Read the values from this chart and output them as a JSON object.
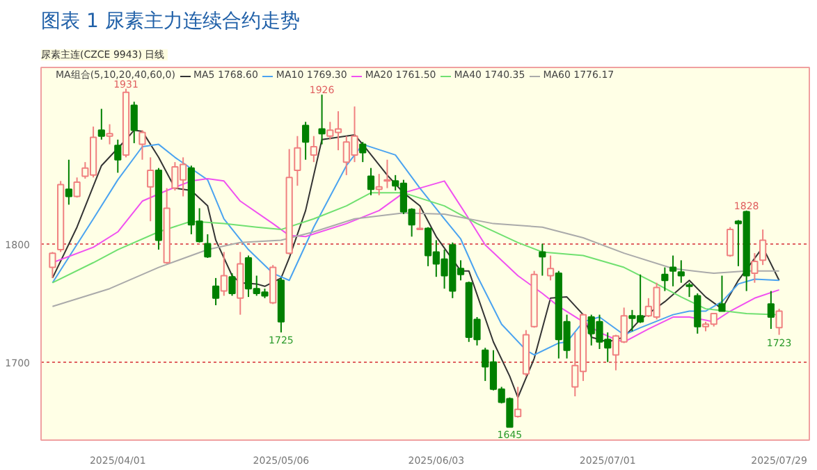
{
  "chart_data": {
    "type": "candlestick",
    "title": "图表 1 尿素主力连续合约走势",
    "subtitle": "尿素主连(CZCE 9943)  日线",
    "legend_title": "MA组合(5,10,20,40,60,0)",
    "categories": [
      null,
      null,
      null,
      null,
      null,
      null,
      null,
      null,
      "2025/04/01",
      null,
      null,
      null,
      null,
      null,
      null,
      null,
      null,
      null,
      null,
      null,
      null,
      null,
      null,
      null,
      null,
      null,
      null,
      null,
      "2025/05/06",
      null,
      null,
      null,
      null,
      null,
      null,
      null,
      null,
      null,
      null,
      null,
      null,
      null,
      null,
      null,
      null,
      null,
      null,
      "2025/06/03",
      null,
      null,
      null,
      null,
      null,
      null,
      null,
      null,
      null,
      null,
      null,
      null,
      null,
      null,
      null,
      null,
      null,
      null,
      null,
      null,
      "2025/07/01",
      null,
      null,
      null,
      null,
      null,
      null,
      null,
      null,
      null,
      null,
      null,
      null,
      null,
      null,
      null,
      null,
      null,
      null,
      null,
      null,
      "2025/07/29"
    ],
    "ohlc": [
      [
        1780,
        1793,
        1771,
        1792
      ],
      [
        1795,
        1853,
        1793,
        1850
      ],
      [
        1846,
        1871,
        1833,
        1840
      ],
      [
        1840,
        1856,
        1839,
        1852
      ],
      [
        1857,
        1869,
        1855,
        1864
      ],
      [
        1858,
        1899,
        1856,
        1890
      ],
      [
        1896,
        1914,
        1888,
        1891
      ],
      [
        1891,
        1901,
        1884,
        1893
      ],
      [
        1883,
        1888,
        1860,
        1871
      ],
      [
        1875,
        1931,
        1873,
        1928
      ],
      [
        1917,
        1920,
        1885,
        1896
      ],
      [
        1884,
        1896,
        1871,
        1894
      ],
      [
        1848,
        1873,
        1819,
        1862
      ],
      [
        1862,
        1864,
        1795,
        1803
      ],
      [
        1784,
        1847,
        1783,
        1830
      ],
      [
        1847,
        1869,
        1845,
        1865
      ],
      [
        1854,
        1873,
        1840,
        1867
      ],
      [
        1864,
        1866,
        1808,
        1816
      ],
      [
        1819,
        1830,
        1801,
        1802
      ],
      [
        1800,
        1808,
        1788,
        1789
      ],
      [
        1764,
        1771,
        1748,
        1754
      ],
      [
        1760,
        1793,
        1756,
        1773
      ],
      [
        1772,
        1775,
        1756,
        1758
      ],
      [
        1754,
        1793,
        1740,
        1783
      ],
      [
        1788,
        1790,
        1755,
        1762
      ],
      [
        1762,
        1773,
        1756,
        1758
      ],
      [
        1759,
        1762,
        1754,
        1756
      ],
      [
        1750,
        1782,
        1749,
        1780
      ],
      [
        1769,
        1771,
        1725,
        1734
      ],
      [
        1792,
        1880,
        1791,
        1856
      ],
      [
        1862,
        1891,
        1849,
        1881
      ],
      [
        1900,
        1903,
        1871,
        1886
      ],
      [
        1875,
        1891,
        1869,
        1882
      ],
      [
        1897,
        1926,
        1884,
        1893
      ],
      [
        1891,
        1903,
        1888,
        1896
      ],
      [
        1894,
        1912,
        1879,
        1897
      ],
      [
        1869,
        1891,
        1858,
        1886
      ],
      [
        1875,
        1916,
        1869,
        1891
      ],
      [
        1884,
        1886,
        1869,
        1877
      ],
      [
        1857,
        1864,
        1841,
        1846
      ],
      [
        1846,
        1859,
        1841,
        1848
      ],
      [
        1853,
        1871,
        1847,
        1854
      ],
      [
        1853,
        1858,
        1845,
        1849
      ],
      [
        1851,
        1854,
        1825,
        1827
      ],
      [
        1829,
        1830,
        1806,
        1816
      ],
      [
        1812,
        1830,
        1812,
        1813
      ],
      [
        1813,
        1814,
        1781,
        1790
      ],
      [
        1793,
        1803,
        1772,
        1783
      ],
      [
        1787,
        1795,
        1762,
        1773
      ],
      [
        1799,
        1801,
        1754,
        1760
      ],
      [
        1779,
        1786,
        1769,
        1774
      ],
      [
        1767,
        1768,
        1717,
        1721
      ],
      [
        1736,
        1738,
        1714,
        1719
      ],
      [
        1710,
        1712,
        1684,
        1696
      ],
      [
        1700,
        1710,
        1676,
        1677
      ],
      [
        1677,
        1679,
        1665,
        1666
      ],
      [
        1669,
        1670,
        1645,
        1645
      ],
      [
        1654,
        1679,
        1653,
        1660
      ],
      [
        1690,
        1727,
        1688,
        1723
      ],
      [
        1730,
        1777,
        1729,
        1774
      ],
      [
        1793,
        1800,
        1773,
        1789
      ],
      [
        1773,
        1790,
        1769,
        1779
      ],
      [
        1775,
        1777,
        1703,
        1719
      ],
      [
        1734,
        1740,
        1703,
        1710
      ],
      [
        1679,
        1725,
        1671,
        1697
      ],
      [
        1692,
        1741,
        1684,
        1740
      ],
      [
        1738,
        1740,
        1714,
        1724
      ],
      [
        1734,
        1740,
        1711,
        1717
      ],
      [
        1719,
        1725,
        1700,
        1712
      ],
      [
        1706,
        1723,
        1693,
        1722
      ],
      [
        1717,
        1746,
        1716,
        1739
      ],
      [
        1739,
        1744,
        1726,
        1737
      ],
      [
        1739,
        1774,
        1733,
        1734
      ],
      [
        1739,
        1754,
        1738,
        1747
      ],
      [
        1738,
        1767,
        1736,
        1763
      ],
      [
        1774,
        1780,
        1760,
        1769
      ],
      [
        1780,
        1790,
        1764,
        1777
      ],
      [
        1776,
        1786,
        1767,
        1773
      ],
      [
        1765,
        1767,
        1755,
        1764
      ],
      [
        1756,
        1758,
        1724,
        1730
      ],
      [
        1730,
        1734,
        1726,
        1732
      ],
      [
        1732,
        1741,
        1730,
        1741
      ],
      [
        1749,
        1773,
        1743,
        1743
      ],
      [
        1790,
        1814,
        1789,
        1812
      ],
      [
        1819,
        1820,
        1781,
        1817
      ],
      [
        1827,
        1828,
        1760,
        1773
      ],
      [
        1775,
        1792,
        1767,
        1785
      ],
      [
        1786,
        1812,
        1782,
        1803
      ],
      [
        1749,
        1760,
        1728,
        1738
      ],
      [
        1729,
        1745,
        1723,
        1743
      ]
    ],
    "colors": [
      "#f08080",
      "#f08080",
      "#008000",
      "#f08080",
      "#f08080",
      "#f08080",
      "#008000",
      "#f08080",
      "#008000",
      "#f08080",
      "#008000",
      "#f08080",
      "#f08080",
      "#008000",
      "#f08080",
      "#f08080",
      "#f08080",
      "#008000",
      "#008000",
      "#008000",
      "#008000",
      "#f08080",
      "#008000",
      "#f08080",
      "#008000",
      "#008000",
      "#008000",
      "#f08080",
      "#008000",
      "#f08080",
      "#f08080",
      "#008000",
      "#f08080",
      "#008000",
      "#f08080",
      "#f08080",
      "#f08080",
      "#f08080",
      "#008000",
      "#008000",
      "#f08080",
      "#f08080",
      "#008000",
      "#008000",
      "#008000",
      "#f08080",
      "#008000",
      "#008000",
      "#008000",
      "#008000",
      "#008000",
      "#008000",
      "#008000",
      "#008000",
      "#008000",
      "#008000",
      "#008000",
      "#f08080",
      "#f08080",
      "#f08080",
      "#008000",
      "#f08080",
      "#008000",
      "#008000",
      "#f08080",
      "#f08080",
      "#008000",
      "#008000",
      "#008000",
      "#f08080",
      "#f08080",
      "#008000",
      "#008000",
      "#f08080",
      "#f08080",
      "#008000",
      "#008000",
      "#008000",
      "#008000",
      "#008000",
      "#f08080",
      "#f08080",
      "#008000",
      "#f08080",
      "#008000",
      "#008000",
      "#f08080",
      "#f08080",
      "#008000",
      "#f08080"
    ],
    "value_labels": [
      null,
      null,
      null,
      null,
      null,
      null,
      null,
      null,
      null,
      "1931",
      null,
      null,
      null,
      null,
      null,
      null,
      null,
      null,
      null,
      null,
      null,
      null,
      null,
      null,
      null,
      null,
      null,
      null,
      "1725",
      null,
      null,
      null,
      null,
      "1926",
      null,
      null,
      null,
      null,
      null,
      null,
      null,
      null,
      null,
      null,
      null,
      null,
      null,
      null,
      null,
      null,
      null,
      null,
      null,
      null,
      null,
      null,
      "1645",
      null,
      null,
      null,
      null,
      null,
      null,
      null,
      null,
      null,
      null,
      null,
      null,
      null,
      null,
      null,
      null,
      null,
      null,
      null,
      null,
      null,
      null,
      null,
      null,
      null,
      null,
      null,
      null,
      "1828",
      null,
      null,
      null,
      "1723"
    ],
    "series": [
      {
        "name": "MA5 1768.60",
        "type": "line",
        "color": "#333333",
        "values": [
          1771,
          null,
          null,
          1814,
          null,
          null,
          1866,
          null,
          null,
          1888,
          1896,
          1895,
          null,
          1873,
          null,
          1847,
          null,
          1845,
          null,
          1832,
          1803,
          null,
          1773,
          1767,
          null,
          1766,
          1764,
          null,
          1771,
          1788,
          null,
          1828,
          null,
          1888,
          null,
          null,
          null,
          1892,
          1884,
          null,
          null,
          1858,
          null,
          1843,
          null,
          1832,
          null,
          1806,
          null,
          null,
          1777,
          1777,
          null,
          null,
          1717,
          null,
          1688,
          1670,
          null,
          1703,
          null,
          1754,
          null,
          1755,
          null,
          1740,
          1721,
          null,
          1717,
          null,
          1721,
          null,
          1736,
          null,
          null,
          1751,
          null,
          null,
          1769,
          null,
          1755,
          null,
          1745,
          null,
          1769,
          null,
          null,
          1797,
          null,
          1769
        ]
      },
      {
        "name": "MA10 1769.30",
        "type": "line",
        "color": "#4aa3f0",
        "values": [
          1767,
          null,
          null,
          null,
          null,
          1821,
          null,
          null,
          1854,
          null,
          null,
          1882,
          null,
          1884,
          null,
          1873,
          null,
          null,
          null,
          1854,
          null,
          1821,
          null,
          null,
          1795,
          null,
          null,
          1775,
          null,
          1769,
          null,
          null,
          1814,
          null,
          null,
          null,
          1866,
          null,
          1884,
          null,
          null,
          null,
          1875,
          null,
          null,
          1847,
          null,
          null,
          1821,
          null,
          1804,
          null,
          1773,
          null,
          null,
          1732,
          null,
          null,
          1710,
          1706,
          null,
          null,
          1716,
          1717,
          null,
          1734,
          null,
          1738,
          null,
          null,
          1723,
          null,
          1729,
          null,
          null,
          null,
          1740,
          null,
          1743,
          null,
          1743,
          null,
          1751,
          null,
          1766,
          null,
          1770,
          null,
          null,
          1769
        ]
      },
      {
        "name": "MA20 1761.50",
        "type": "line",
        "color": "#f050f0",
        "values": [
          1784,
          null,
          null,
          null,
          null,
          1797,
          null,
          null,
          1810,
          null,
          null,
          1836,
          null,
          null,
          1845,
          null,
          null,
          1853,
          null,
          1855,
          null,
          1853,
          null,
          1836,
          null,
          null,
          null,
          1817,
          null,
          1807,
          null,
          1806,
          null,
          null,
          null,
          null,
          1817,
          null,
          null,
          null,
          1828,
          null,
          null,
          1843,
          null,
          null,
          null,
          null,
          1853,
          null,
          null,
          1821,
          null,
          1799,
          null,
          null,
          null,
          1773,
          null,
          null,
          1758,
          null,
          1747,
          null,
          null,
          1734,
          null,
          1725,
          null,
          1719,
          1717,
          null,
          null,
          1728,
          null,
          null,
          1738,
          null,
          1738,
          null,
          null,
          1734,
          null,
          1743,
          null,
          null,
          1754,
          null,
          null,
          1761
        ]
      },
      {
        "name": "MA40 1740.35",
        "type": "line",
        "color": "#70e070",
        "values": [
          1767,
          null,
          null,
          null,
          null,
          1784,
          null,
          null,
          1795,
          null,
          null,
          null,
          null,
          1810,
          null,
          null,
          null,
          1819,
          null,
          null,
          null,
          1817,
          null,
          null,
          null,
          1814,
          null,
          null,
          1812,
          null,
          null,
          null,
          1821,
          null,
          null,
          null,
          1832,
          null,
          null,
          1843,
          null,
          null,
          null,
          1843,
          null,
          null,
          null,
          null,
          1832,
          null,
          null,
          null,
          1817,
          null,
          null,
          null,
          null,
          1801,
          null,
          null,
          1793,
          null,
          null,
          null,
          null,
          1790,
          null,
          null,
          null,
          null,
          1780,
          null,
          null,
          null,
          1766,
          null,
          null,
          1755,
          null,
          null,
          1745,
          null,
          null,
          null,
          null,
          1741,
          null,
          null,
          null,
          1740
        ]
      },
      {
        "name": "MA60 1776.17",
        "type": "line",
        "color": "#aaaaaa",
        "values": [
          1747,
          null,
          null,
          null,
          null,
          null,
          null,
          1762,
          null,
          null,
          null,
          null,
          null,
          1780,
          null,
          null,
          null,
          null,
          null,
          1795,
          null,
          null,
          null,
          1801,
          null,
          null,
          null,
          null,
          1803,
          null,
          null,
          null,
          1810,
          null,
          null,
          null,
          null,
          1821,
          null,
          null,
          null,
          null,
          null,
          1826,
          null,
          null,
          null,
          null,
          1825,
          null,
          null,
          null,
          null,
          null,
          1817,
          null,
          null,
          null,
          null,
          null,
          1814,
          null,
          null,
          null,
          null,
          1805,
          null,
          null,
          null,
          null,
          1792,
          null,
          null,
          null,
          null,
          null,
          1779,
          null,
          null,
          null,
          null,
          1775,
          null,
          null,
          null,
          1777,
          null,
          null,
          null,
          1777
        ]
      }
    ],
    "ylim": [
      1634,
      1949
    ],
    "yticks": [
      1700,
      1800
    ],
    "grid": "y",
    "legend": "top left"
  }
}
